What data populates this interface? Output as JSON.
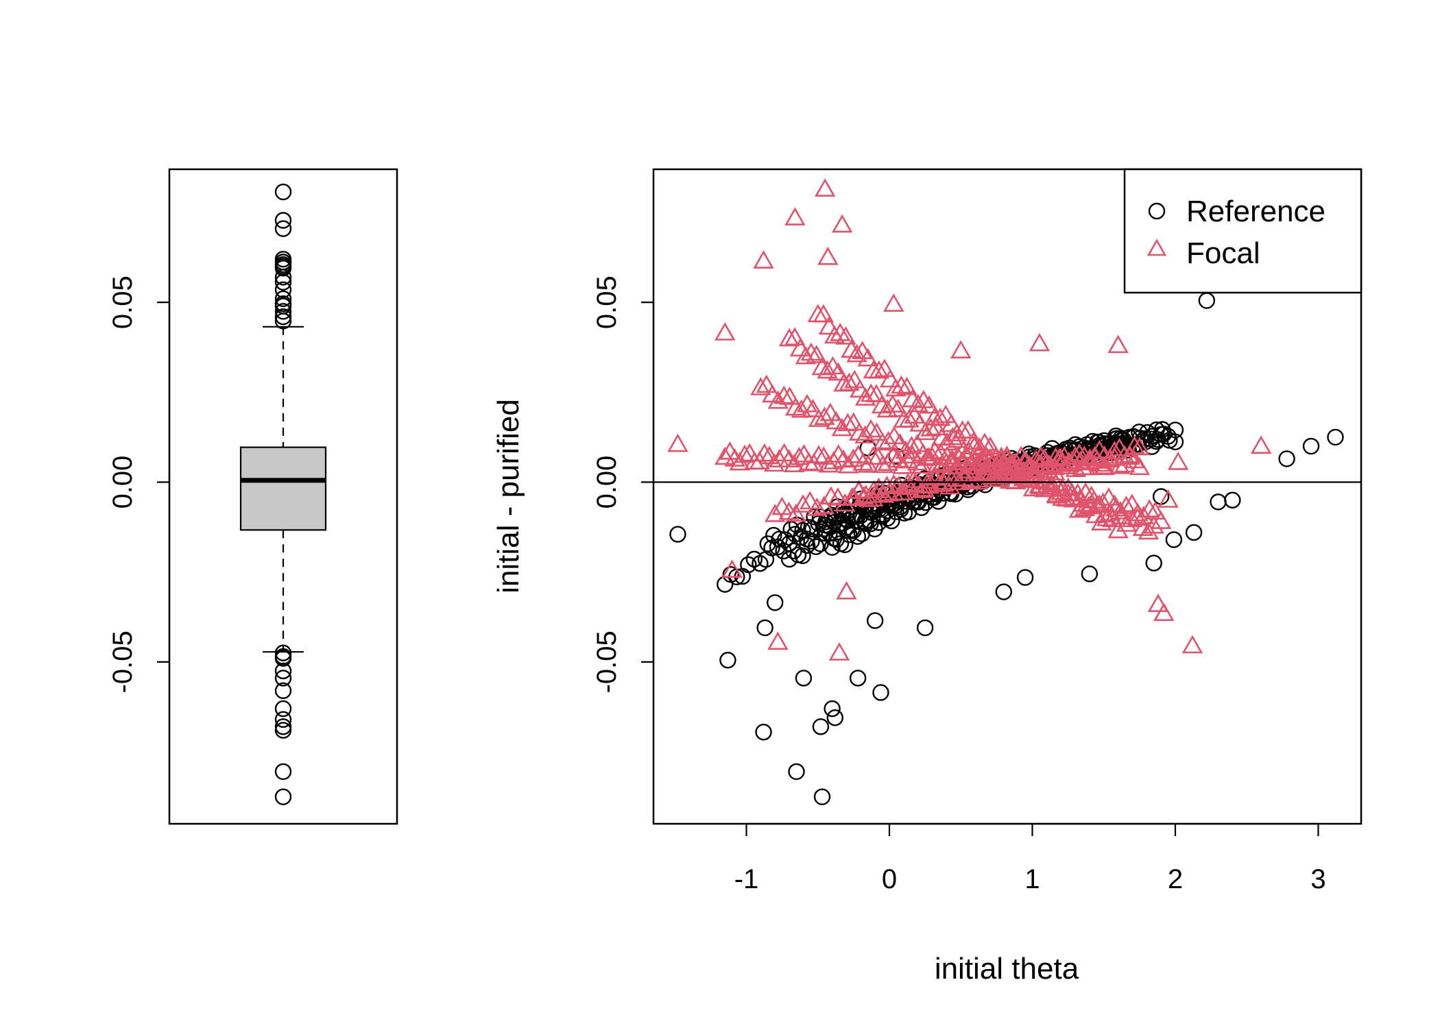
{
  "colors": {
    "reference": "#000000",
    "focal": "#DF536B",
    "box_fill": "#C8C8C8"
  },
  "chart_data": [
    {
      "type": "box",
      "ylim": [
        -0.095,
        0.087
      ],
      "yticks": [
        "-0.05",
        "0.00",
        "0.05"
      ],
      "stats": {
        "lower_whisker": -0.0472,
        "q1": -0.0133,
        "median": 0.0005,
        "q3": 0.0097,
        "upper_whisker": 0.0432
      },
      "outliers": [
        0.0807,
        0.0728,
        0.0705,
        0.062,
        0.0612,
        0.0605,
        0.06,
        0.0595,
        0.057,
        0.0556,
        0.0535,
        0.051,
        0.0496,
        0.049,
        0.0475,
        0.046,
        0.0448,
        -0.0475,
        -0.0485,
        -0.049,
        -0.0525,
        -0.0545,
        -0.058,
        -0.063,
        -0.066,
        -0.068,
        -0.069,
        -0.0805,
        -0.0875
      ]
    },
    {
      "type": "scatter",
      "xlabel": "initial theta",
      "ylabel": "initial - purified",
      "xlim": [
        -1.65,
        3.3
      ],
      "ylim": [
        -0.095,
        0.087
      ],
      "xticks": [
        "-1",
        "0",
        "1",
        "2",
        "3"
      ],
      "yticks": [
        "-0.05",
        "0.00",
        "0.05"
      ],
      "hline": 0,
      "legend": {
        "position": "top-right",
        "entries": [
          "Reference",
          "Focal"
        ]
      },
      "bands": {
        "reference": [
          {
            "x": [
              -1.15,
              2.0
            ],
            "a": -0.024,
            "b": 0.012,
            "c": 0.0012,
            "n": 78
          },
          {
            "x": [
              -0.85,
              1.95
            ],
            "a": -0.02,
            "b": 0.013,
            "c": 0.002,
            "n": 70
          },
          {
            "x": [
              -0.45,
              1.9
            ],
            "a": -0.024,
            "b": 0.013,
            "c": 0.0015,
            "n": 75
          },
          {
            "x": [
              -0.7,
              1.7
            ],
            "a": -0.031,
            "b": 0.013,
            "c": 0.001,
            "n": 78
          },
          {
            "x": [
              -0.4,
              1.65
            ],
            "a": -0.036,
            "b": 0.016,
            "c": 0.0,
            "n": 70
          }
        ],
        "focal": [
          {
            "x": [
              -1.15,
              1.75
            ],
            "a": 0.0015,
            "b": 0.0,
            "c": 0.0055,
            "n": 85
          },
          {
            "x": [
              -0.9,
              1.9
            ],
            "a": 0.0135,
            "b": -0.019,
            "c": 0.008,
            "n": 70
          },
          {
            "x": [
              -0.7,
              1.85
            ],
            "a": 0.0275,
            "b": -0.03,
            "c": 0.0135,
            "n": 68
          },
          {
            "x": [
              -0.5,
              1.6
            ],
            "a": 0.0385,
            "b": -0.041,
            "c": 0.0185,
            "n": 55
          },
          {
            "x": [
              -0.25,
              1.75
            ],
            "a": -0.0085,
            "b": 0.0105,
            "c": 0.0,
            "n": 58
          },
          {
            "x": [
              -0.8,
              1.5
            ],
            "a": -0.009,
            "b": 0.008,
            "c": 0.0,
            "n": 48
          }
        ]
      },
      "reference_extra": [
        [
          -1.48,
          -0.0145
        ],
        [
          -1.13,
          -0.0495
        ],
        [
          -0.88,
          -0.0695
        ],
        [
          -0.65,
          -0.0805
        ],
        [
          -0.47,
          -0.0875
        ],
        [
          -0.48,
          -0.068
        ],
        [
          -0.4,
          -0.063
        ],
        [
          -0.38,
          -0.0655
        ],
        [
          -0.06,
          -0.0585
        ],
        [
          -0.22,
          -0.0545
        ],
        [
          -0.6,
          -0.0545
        ],
        [
          -0.8,
          -0.0335
        ],
        [
          -0.87,
          -0.0405
        ],
        [
          -0.1,
          -0.0385
        ],
        [
          0.25,
          -0.0405
        ],
        [
          0.8,
          -0.0305
        ],
        [
          0.95,
          -0.0265
        ],
        [
          1.4,
          -0.0255
        ],
        [
          1.85,
          -0.0225
        ],
        [
          1.99,
          -0.016
        ],
        [
          2.13,
          -0.014
        ],
        [
          2.22,
          0.0505
        ],
        [
          2.3,
          -0.0055
        ],
        [
          2.4,
          -0.005
        ],
        [
          2.78,
          0.0065
        ],
        [
          2.95,
          0.01
        ],
        [
          3.12,
          0.0125
        ],
        [
          2.0,
          0.0145
        ],
        [
          1.9,
          -0.004
        ],
        [
          -0.15,
          0.0095
        ],
        [
          0.05,
          0.0072
        ]
      ],
      "focal_extra": [
        [
          -1.48,
          0.0105
        ],
        [
          -1.15,
          0.0415
        ],
        [
          -1.1,
          -0.0245
        ],
        [
          -0.88,
          0.0615
        ],
        [
          -0.66,
          0.0735
        ],
        [
          -0.45,
          0.0815
        ],
        [
          -0.33,
          0.0715
        ],
        [
          -0.78,
          -0.0445
        ],
        [
          -0.35,
          -0.0475
        ],
        [
          -0.3,
          -0.0305
        ],
        [
          -0.43,
          0.0625
        ],
        [
          0.03,
          0.0495
        ],
        [
          2.6,
          0.01
        ],
        [
          1.88,
          -0.034
        ],
        [
          1.92,
          -0.0365
        ],
        [
          2.12,
          -0.0455
        ],
        [
          1.95,
          -0.005
        ],
        [
          2.02,
          0.0055
        ],
        [
          1.6,
          0.038
        ],
        [
          1.05,
          0.0385
        ],
        [
          0.5,
          0.0365
        ]
      ]
    }
  ]
}
